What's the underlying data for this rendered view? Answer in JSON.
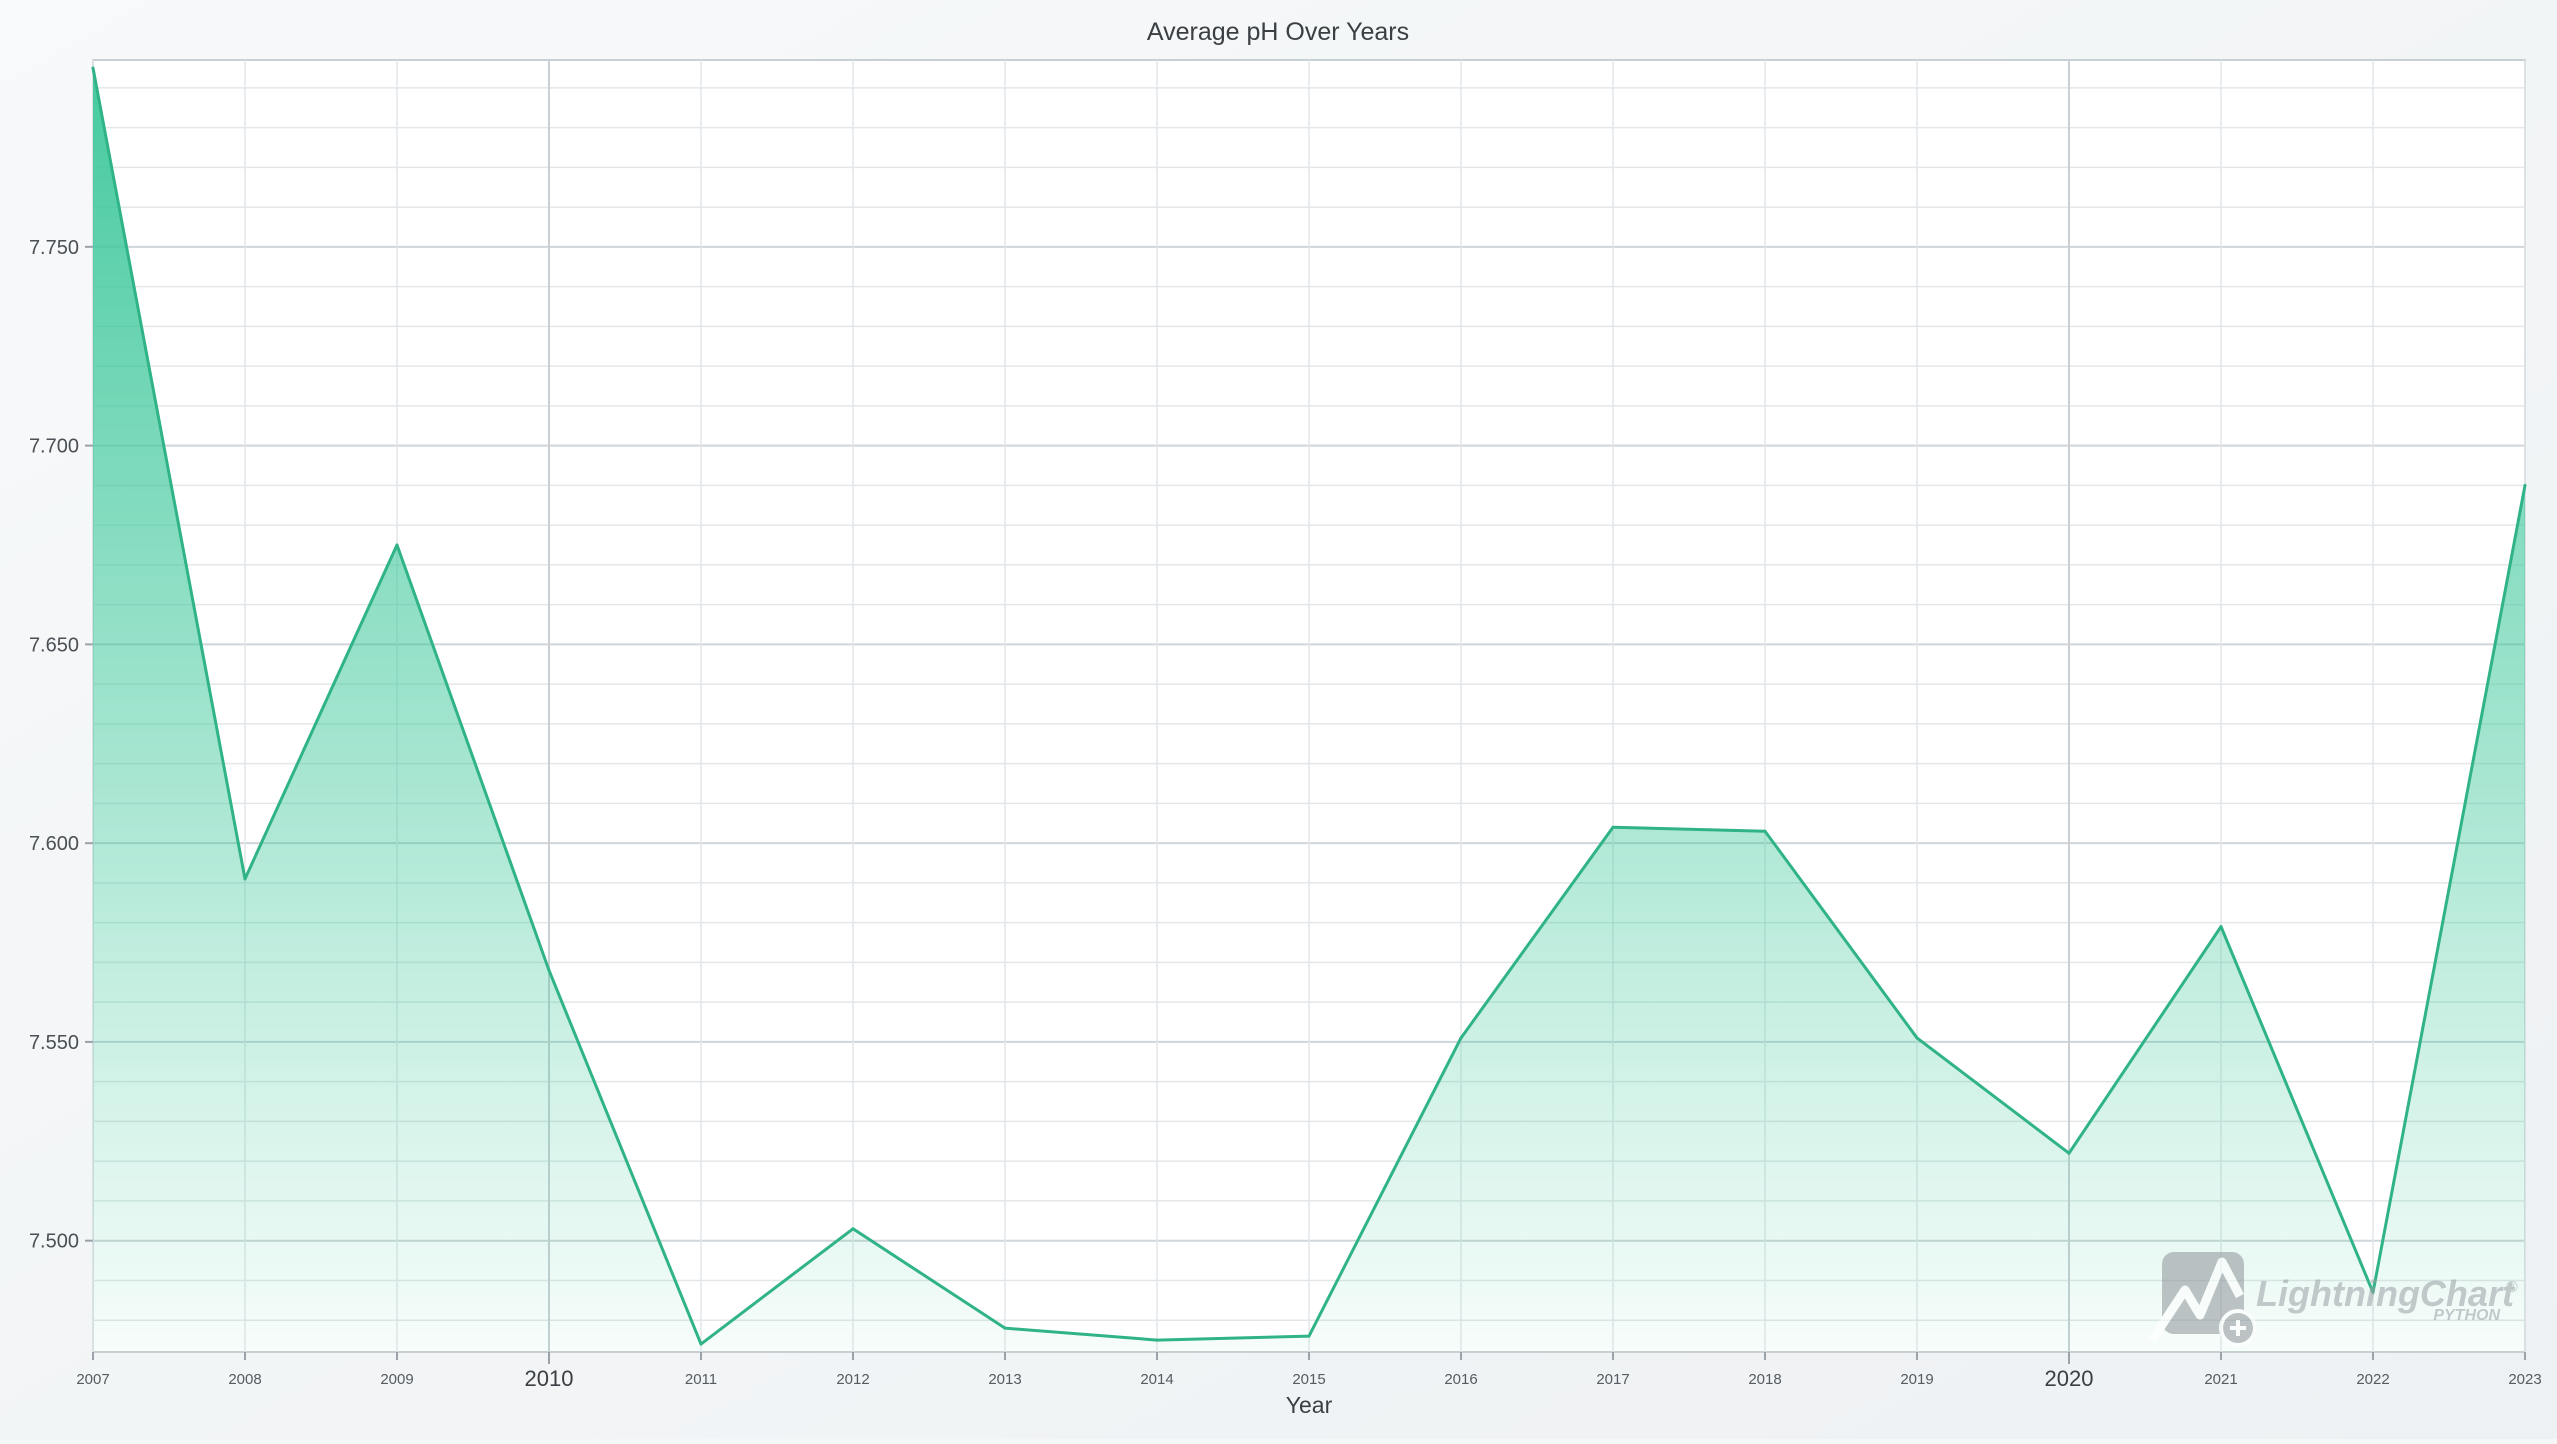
{
  "chart_data": {
    "type": "area",
    "title": "Average pH Over Years",
    "xlabel": "Year",
    "ylabel": "",
    "x": [
      2007,
      2008,
      2009,
      2010,
      2011,
      2012,
      2013,
      2014,
      2015,
      2016,
      2017,
      2018,
      2019,
      2020,
      2021,
      2022,
      2023
    ],
    "series": [
      {
        "values": [
          7.795,
          7.591,
          7.675,
          7.568,
          7.474,
          7.503,
          7.478,
          7.475,
          7.476,
          7.551,
          7.604,
          7.603,
          7.551,
          7.522,
          7.579,
          7.487,
          7.69
        ]
      }
    ],
    "xlim": [
      2007,
      2023
    ],
    "ylim": [
      7.472,
      7.797
    ],
    "y_ticks": [
      "7.500",
      "7.550",
      "7.600",
      "7.650",
      "7.700",
      "7.750"
    ],
    "x_ticks": [
      "2007",
      "2008",
      "2009",
      "2010",
      "2011",
      "2012",
      "2013",
      "2014",
      "2015",
      "2016",
      "2017",
      "2018",
      "2019",
      "2020",
      "2021",
      "2022",
      "2023"
    ],
    "x_major_ticks": [
      "2010",
      "2020"
    ],
    "grid": true,
    "legend": "none",
    "colors": {
      "line": "#2fb387",
      "fill": "#3cc79a",
      "grid": "#d9dde0",
      "background": "#ffffff"
    }
  },
  "watermark": {
    "brand": "LightningChart",
    "sub": "PYTHON",
    "registered": "®"
  }
}
